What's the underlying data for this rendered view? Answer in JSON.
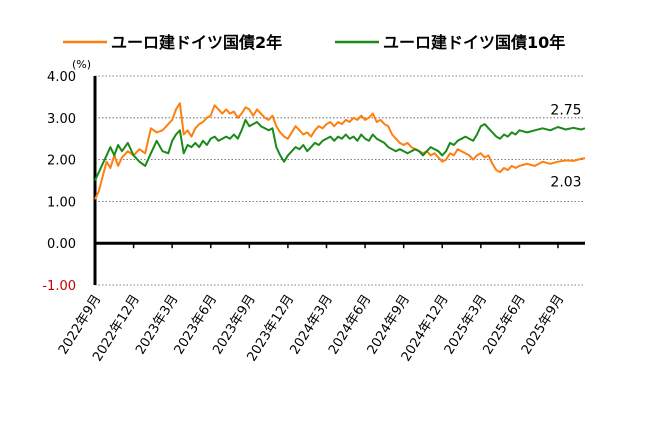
{
  "chart_data": {
    "type": "line",
    "ylabel_unit": "(%)",
    "ylim": [
      -1.0,
      4.0
    ],
    "y_ticks": [
      "4.00",
      "3.00",
      "2.00",
      "1.00",
      "0.00",
      "-1.00"
    ],
    "x_ticks": [
      "2022年9月",
      "2022年12月",
      "2023年3月",
      "2023年6月",
      "2023年9月",
      "2023年12月",
      "2024年3月",
      "2024年6月",
      "2024年9月",
      "2024年12月",
      "2025年3月",
      "2025年6月",
      "2025年9月"
    ],
    "legend_position": "top",
    "grid": "horizontal-dotted",
    "series": [
      {
        "name": "ユーロ建ドイツ国債2年",
        "color": "#ff7f0e",
        "end_label": "2.03",
        "points": [
          [
            0,
            1.05
          ],
          [
            0.1,
            1.25
          ],
          [
            0.2,
            1.6
          ],
          [
            0.3,
            1.95
          ],
          [
            0.4,
            1.8
          ],
          [
            0.5,
            2.1
          ],
          [
            0.6,
            1.85
          ],
          [
            0.7,
            2.05
          ],
          [
            0.85,
            2.2
          ],
          [
            1.0,
            2.1
          ],
          [
            1.15,
            2.25
          ],
          [
            1.3,
            2.15
          ],
          [
            1.45,
            2.75
          ],
          [
            1.6,
            2.65
          ],
          [
            1.75,
            2.7
          ],
          [
            1.9,
            2.85
          ],
          [
            2.0,
            2.95
          ],
          [
            2.1,
            3.2
          ],
          [
            2.2,
            3.35
          ],
          [
            2.3,
            2.6
          ],
          [
            2.4,
            2.7
          ],
          [
            2.5,
            2.55
          ],
          [
            2.6,
            2.75
          ],
          [
            2.7,
            2.85
          ],
          [
            2.8,
            2.9
          ],
          [
            2.9,
            3.0
          ],
          [
            3.0,
            3.05
          ],
          [
            3.1,
            3.3
          ],
          [
            3.2,
            3.2
          ],
          [
            3.3,
            3.1
          ],
          [
            3.4,
            3.2
          ],
          [
            3.5,
            3.1
          ],
          [
            3.6,
            3.15
          ],
          [
            3.7,
            3.0
          ],
          [
            3.8,
            3.1
          ],
          [
            3.9,
            3.25
          ],
          [
            4.0,
            3.2
          ],
          [
            4.1,
            3.05
          ],
          [
            4.2,
            3.2
          ],
          [
            4.3,
            3.1
          ],
          [
            4.4,
            3.0
          ],
          [
            4.5,
            2.95
          ],
          [
            4.6,
            3.05
          ],
          [
            4.7,
            2.8
          ],
          [
            4.8,
            2.65
          ],
          [
            4.9,
            2.55
          ],
          [
            5.0,
            2.5
          ],
          [
            5.1,
            2.65
          ],
          [
            5.2,
            2.8
          ],
          [
            5.3,
            2.7
          ],
          [
            5.4,
            2.6
          ],
          [
            5.5,
            2.65
          ],
          [
            5.6,
            2.55
          ],
          [
            5.7,
            2.7
          ],
          [
            5.8,
            2.8
          ],
          [
            5.9,
            2.75
          ],
          [
            6.0,
            2.85
          ],
          [
            6.1,
            2.9
          ],
          [
            6.2,
            2.8
          ],
          [
            6.3,
            2.9
          ],
          [
            6.4,
            2.85
          ],
          [
            6.5,
            2.95
          ],
          [
            6.6,
            2.9
          ],
          [
            6.7,
            3.0
          ],
          [
            6.8,
            2.95
          ],
          [
            6.9,
            3.05
          ],
          [
            7.0,
            2.95
          ],
          [
            7.1,
            3.0
          ],
          [
            7.2,
            3.1
          ],
          [
            7.3,
            2.9
          ],
          [
            7.4,
            2.95
          ],
          [
            7.5,
            2.85
          ],
          [
            7.6,
            2.8
          ],
          [
            7.7,
            2.6
          ],
          [
            7.8,
            2.5
          ],
          [
            7.9,
            2.4
          ],
          [
            8.0,
            2.35
          ],
          [
            8.1,
            2.4
          ],
          [
            8.2,
            2.3
          ],
          [
            8.3,
            2.25
          ],
          [
            8.4,
            2.2
          ],
          [
            8.5,
            2.15
          ],
          [
            8.6,
            2.2
          ],
          [
            8.7,
            2.1
          ],
          [
            8.8,
            2.15
          ],
          [
            8.9,
            2.05
          ],
          [
            9.0,
            1.95
          ],
          [
            9.1,
            2.0
          ],
          [
            9.2,
            2.15
          ],
          [
            9.3,
            2.1
          ],
          [
            9.4,
            2.25
          ],
          [
            9.5,
            2.2
          ],
          [
            9.6,
            2.15
          ],
          [
            9.7,
            2.1
          ],
          [
            9.8,
            2.0
          ],
          [
            9.9,
            2.1
          ],
          [
            10.0,
            2.15
          ],
          [
            10.1,
            2.05
          ],
          [
            10.2,
            2.1
          ],
          [
            10.3,
            1.9
          ],
          [
            10.4,
            1.75
          ],
          [
            10.5,
            1.7
          ],
          [
            10.6,
            1.8
          ],
          [
            10.7,
            1.75
          ],
          [
            10.8,
            1.85
          ],
          [
            10.9,
            1.8
          ],
          [
            11.0,
            1.85
          ],
          [
            11.2,
            1.9
          ],
          [
            11.4,
            1.85
          ],
          [
            11.6,
            1.95
          ],
          [
            11.8,
            1.9
          ],
          [
            12.0,
            1.95
          ],
          [
            12.2,
            1.98
          ],
          [
            12.4,
            1.97
          ],
          [
            12.6,
            2.02
          ],
          [
            12.7,
            2.03
          ]
        ]
      },
      {
        "name": "ユーロ建ドイツ国債10年",
        "color": "#1a8a1a",
        "end_label": "2.75",
        "points": [
          [
            0,
            1.5
          ],
          [
            0.1,
            1.7
          ],
          [
            0.2,
            1.9
          ],
          [
            0.3,
            2.1
          ],
          [
            0.4,
            2.3
          ],
          [
            0.5,
            2.1
          ],
          [
            0.6,
            2.35
          ],
          [
            0.7,
            2.2
          ],
          [
            0.85,
            2.4
          ],
          [
            1.0,
            2.1
          ],
          [
            1.15,
            1.95
          ],
          [
            1.3,
            1.85
          ],
          [
            1.45,
            2.15
          ],
          [
            1.6,
            2.45
          ],
          [
            1.75,
            2.2
          ],
          [
            1.9,
            2.15
          ],
          [
            2.0,
            2.45
          ],
          [
            2.1,
            2.6
          ],
          [
            2.2,
            2.7
          ],
          [
            2.3,
            2.15
          ],
          [
            2.4,
            2.35
          ],
          [
            2.5,
            2.3
          ],
          [
            2.6,
            2.4
          ],
          [
            2.7,
            2.3
          ],
          [
            2.8,
            2.45
          ],
          [
            2.9,
            2.35
          ],
          [
            3.0,
            2.5
          ],
          [
            3.1,
            2.55
          ],
          [
            3.2,
            2.45
          ],
          [
            3.3,
            2.5
          ],
          [
            3.4,
            2.55
          ],
          [
            3.5,
            2.5
          ],
          [
            3.6,
            2.6
          ],
          [
            3.7,
            2.5
          ],
          [
            3.8,
            2.7
          ],
          [
            3.9,
            2.95
          ],
          [
            4.0,
            2.8
          ],
          [
            4.1,
            2.85
          ],
          [
            4.2,
            2.9
          ],
          [
            4.3,
            2.8
          ],
          [
            4.4,
            2.75
          ],
          [
            4.5,
            2.7
          ],
          [
            4.6,
            2.75
          ],
          [
            4.7,
            2.3
          ],
          [
            4.8,
            2.1
          ],
          [
            4.9,
            1.95
          ],
          [
            5.0,
            2.1
          ],
          [
            5.1,
            2.2
          ],
          [
            5.2,
            2.3
          ],
          [
            5.3,
            2.25
          ],
          [
            5.4,
            2.35
          ],
          [
            5.5,
            2.2
          ],
          [
            5.6,
            2.3
          ],
          [
            5.7,
            2.4
          ],
          [
            5.8,
            2.35
          ],
          [
            5.9,
            2.45
          ],
          [
            6.0,
            2.5
          ],
          [
            6.1,
            2.55
          ],
          [
            6.2,
            2.45
          ],
          [
            6.3,
            2.55
          ],
          [
            6.4,
            2.5
          ],
          [
            6.5,
            2.6
          ],
          [
            6.6,
            2.5
          ],
          [
            6.7,
            2.55
          ],
          [
            6.8,
            2.45
          ],
          [
            6.9,
            2.6
          ],
          [
            7.0,
            2.5
          ],
          [
            7.1,
            2.45
          ],
          [
            7.2,
            2.6
          ],
          [
            7.3,
            2.5
          ],
          [
            7.4,
            2.45
          ],
          [
            7.5,
            2.4
          ],
          [
            7.6,
            2.3
          ],
          [
            7.7,
            2.25
          ],
          [
            7.8,
            2.2
          ],
          [
            7.9,
            2.25
          ],
          [
            8.0,
            2.2
          ],
          [
            8.1,
            2.15
          ],
          [
            8.2,
            2.2
          ],
          [
            8.3,
            2.25
          ],
          [
            8.4,
            2.2
          ],
          [
            8.5,
            2.1
          ],
          [
            8.6,
            2.2
          ],
          [
            8.7,
            2.3
          ],
          [
            8.8,
            2.25
          ],
          [
            8.9,
            2.2
          ],
          [
            9.0,
            2.1
          ],
          [
            9.1,
            2.2
          ],
          [
            9.2,
            2.4
          ],
          [
            9.3,
            2.35
          ],
          [
            9.4,
            2.45
          ],
          [
            9.5,
            2.5
          ],
          [
            9.6,
            2.55
          ],
          [
            9.7,
            2.5
          ],
          [
            9.8,
            2.45
          ],
          [
            9.9,
            2.6
          ],
          [
            10.0,
            2.8
          ],
          [
            10.1,
            2.85
          ],
          [
            10.2,
            2.75
          ],
          [
            10.3,
            2.65
          ],
          [
            10.4,
            2.55
          ],
          [
            10.5,
            2.5
          ],
          [
            10.6,
            2.6
          ],
          [
            10.7,
            2.55
          ],
          [
            10.8,
            2.65
          ],
          [
            10.9,
            2.6
          ],
          [
            11.0,
            2.7
          ],
          [
            11.2,
            2.65
          ],
          [
            11.4,
            2.7
          ],
          [
            11.6,
            2.75
          ],
          [
            11.8,
            2.7
          ],
          [
            12.0,
            2.78
          ],
          [
            12.2,
            2.72
          ],
          [
            12.4,
            2.76
          ],
          [
            12.6,
            2.72
          ],
          [
            12.7,
            2.75
          ]
        ]
      }
    ]
  }
}
